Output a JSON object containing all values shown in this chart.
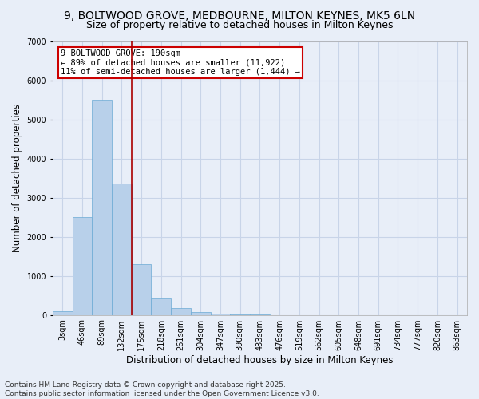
{
  "title1": "9, BOLTWOOD GROVE, MEDBOURNE, MILTON KEYNES, MK5 6LN",
  "title2": "Size of property relative to detached houses in Milton Keynes",
  "xlabel": "Distribution of detached houses by size in Milton Keynes",
  "ylabel": "Number of detached properties",
  "categories": [
    "3sqm",
    "46sqm",
    "89sqm",
    "132sqm",
    "175sqm",
    "218sqm",
    "261sqm",
    "304sqm",
    "347sqm",
    "390sqm",
    "433sqm",
    "476sqm",
    "519sqm",
    "562sqm",
    "605sqm",
    "648sqm",
    "691sqm",
    "734sqm",
    "777sqm",
    "820sqm",
    "863sqm"
  ],
  "values": [
    90,
    2500,
    5500,
    3350,
    1300,
    430,
    175,
    80,
    30,
    5,
    2,
    1,
    0,
    0,
    0,
    0,
    0,
    0,
    0,
    0,
    0
  ],
  "bar_color": "#b8d0ea",
  "bar_edge_color": "#6aaad4",
  "bar_edge_width": 0.5,
  "grid_color": "#c8d4e8",
  "bg_color": "#e8eef8",
  "annotation_text": "9 BOLTWOOD GROVE: 190sqm\n← 89% of detached houses are smaller (11,922)\n11% of semi-detached houses are larger (1,444) →",
  "annotation_box_color": "#ffffff",
  "annotation_box_edge_color": "#cc0000",
  "vline_color": "#aa0000",
  "ylim": [
    0,
    7000
  ],
  "yticks": [
    0,
    1000,
    2000,
    3000,
    4000,
    5000,
    6000,
    7000
  ],
  "footer": "Contains HM Land Registry data © Crown copyright and database right 2025.\nContains public sector information licensed under the Open Government Licence v3.0.",
  "title1_fontsize": 10,
  "title2_fontsize": 9,
  "xlabel_fontsize": 8.5,
  "ylabel_fontsize": 8.5,
  "tick_fontsize": 7,
  "annotation_fontsize": 7.5,
  "footer_fontsize": 6.5
}
